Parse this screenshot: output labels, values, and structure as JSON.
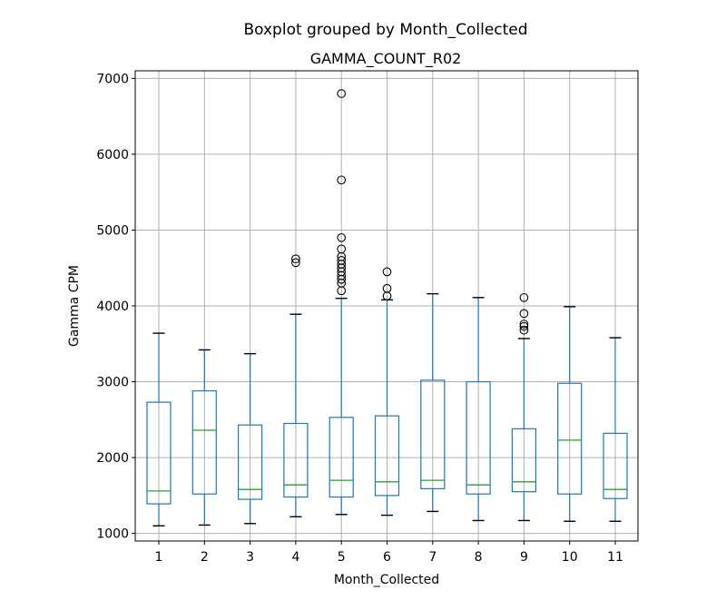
{
  "chart_data": {
    "type": "box",
    "suptitle": "Boxplot grouped by Month_Collected",
    "title": "GAMMA_COUNT_R02",
    "xlabel": "Month_Collected",
    "ylabel": "Gamma CPM",
    "ylim": [
      900,
      7100
    ],
    "yticks": [
      1000,
      2000,
      3000,
      4000,
      5000,
      6000,
      7000
    ],
    "grid": true,
    "colors": {
      "box": "#1f77b4",
      "median": "#2ca02c",
      "whisker_cap": "#000000",
      "grid": "#b0b0b0",
      "flier": "#000000"
    },
    "categories": [
      "1",
      "2",
      "3",
      "4",
      "5",
      "6",
      "7",
      "8",
      "9",
      "10",
      "11"
    ],
    "boxes": [
      {
        "category": "1",
        "whislo": 1100,
        "q1": 1390,
        "median": 1560,
        "q3": 2730,
        "whishi": 3640,
        "fliers": []
      },
      {
        "category": "2",
        "whislo": 1110,
        "q1": 1520,
        "median": 2360,
        "q3": 2880,
        "whishi": 3420,
        "fliers": []
      },
      {
        "category": "3",
        "whislo": 1130,
        "q1": 1450,
        "median": 1580,
        "q3": 2430,
        "whishi": 3370,
        "fliers": []
      },
      {
        "category": "4",
        "whislo": 1220,
        "q1": 1480,
        "median": 1640,
        "q3": 2450,
        "whishi": 3890,
        "fliers": [
          4570,
          4620
        ]
      },
      {
        "category": "5",
        "whislo": 1250,
        "q1": 1480,
        "median": 1700,
        "q3": 2530,
        "whishi": 4100,
        "fliers": [
          4200,
          4300,
          4350,
          4400,
          4450,
          4500,
          4550,
          4600,
          4650,
          4750,
          4900,
          5660,
          6800
        ]
      },
      {
        "category": "6",
        "whislo": 1240,
        "q1": 1500,
        "median": 1680,
        "q3": 2550,
        "whishi": 4080,
        "fliers": [
          4130,
          4230,
          4450
        ]
      },
      {
        "category": "7",
        "whislo": 1290,
        "q1": 1590,
        "median": 1700,
        "q3": 3020,
        "whishi": 4160,
        "fliers": []
      },
      {
        "category": "8",
        "whislo": 1170,
        "q1": 1520,
        "median": 1640,
        "q3": 3000,
        "whishi": 4110,
        "fliers": []
      },
      {
        "category": "9",
        "whislo": 1170,
        "q1": 1550,
        "median": 1680,
        "q3": 2380,
        "whishi": 3570,
        "fliers": [
          3680,
          3730,
          3760,
          3900,
          4110
        ]
      },
      {
        "category": "10",
        "whislo": 1160,
        "q1": 1520,
        "median": 2230,
        "q3": 2980,
        "whishi": 3990,
        "fliers": []
      },
      {
        "category": "11",
        "whislo": 1160,
        "q1": 1460,
        "median": 1580,
        "q3": 2320,
        "whishi": 3580,
        "fliers": []
      }
    ]
  }
}
